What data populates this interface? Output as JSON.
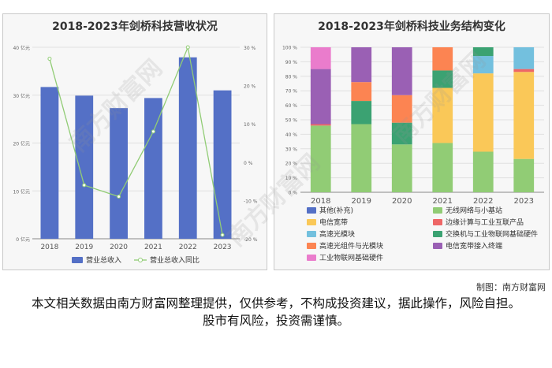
{
  "chart_data": [
    {
      "type": "bar",
      "title": "2018-2023年剑桥科技营收状况",
      "categories": [
        "2018",
        "2019",
        "2020",
        "2021",
        "2022",
        "2023"
      ],
      "series": [
        {
          "name": "营业总收入",
          "type": "bar",
          "axis": "left",
          "values": [
            31.7,
            29.9,
            27.3,
            29.4,
            37.9,
            31.0
          ],
          "color": "#5470c6"
        },
        {
          "name": "营业总收入同比",
          "type": "line",
          "axis": "right",
          "values": [
            27,
            -6,
            -9,
            8,
            30,
            -19
          ],
          "color": "#91cc75"
        }
      ],
      "ylim_left": [
        0,
        40
      ],
      "yticks_left": [
        "0 亿元",
        "10 亿元",
        "20 亿元",
        "30 亿元",
        "40 亿元"
      ],
      "ylim_right": [
        -20,
        30
      ],
      "yticks_right": [
        "-20 %",
        "-10 %",
        "0 %",
        "10 %",
        "20 %",
        "30 %"
      ],
      "legend_position": "bottom",
      "grid": true
    },
    {
      "type": "bar",
      "stacked": true,
      "title": "2018-2023年剑桥科技业务结构变化",
      "categories": [
        "2018",
        "2019",
        "2020",
        "2021",
        "2022",
        "2023"
      ],
      "yticks": [
        "0 %",
        "10 %",
        "20 %",
        "30 %",
        "40 %",
        "50 %",
        "60 %",
        "70 %",
        "80 %",
        "90 %",
        "100 %"
      ],
      "ylim": [
        0,
        100
      ],
      "series": [
        {
          "name": "其他(补充)",
          "color": "#5470c6",
          "values": [
            0,
            0,
            0,
            0,
            0,
            0
          ]
        },
        {
          "name": "无线网络与小基站",
          "color": "#91cc75",
          "values": [
            46,
            47,
            33,
            34,
            28,
            23
          ]
        },
        {
          "name": "电信宽带",
          "color": "#fac858",
          "values": [
            0,
            0,
            0,
            38,
            54,
            60
          ]
        },
        {
          "name": "边缘计算与工业互联产品",
          "color": "#ee6666",
          "values": [
            1,
            0,
            0,
            0,
            0,
            2
          ]
        },
        {
          "name": "高速光模块",
          "color": "#73c0de",
          "values": [
            0,
            0,
            0,
            0,
            12,
            15
          ]
        },
        {
          "name": "交换机与工业物联网基础硬件",
          "color": "#3ba272",
          "values": [
            0,
            16,
            15,
            12,
            6,
            0
          ]
        },
        {
          "name": "高速光组件与光模块",
          "color": "#fc8452",
          "values": [
            0,
            13,
            19,
            16,
            0,
            0
          ]
        },
        {
          "name": "电信宽带接入终端",
          "color": "#9a60b4",
          "values": [
            38,
            24,
            33,
            0,
            0,
            0
          ]
        },
        {
          "name": "工业物联网基础硬件",
          "color": "#ea7ccc",
          "values": [
            15,
            0,
            0,
            0,
            0,
            0
          ]
        }
      ],
      "legend_position": "bottom",
      "grid": true
    }
  ],
  "credit": "制图：南方财富网",
  "disclaimer": "本文相关数据由南方财富网整理提供，仅供参考，不构成投资建议，据此操作，风险自担。股市有风险，投资需谨慎。",
  "watermark": "南方财富网"
}
